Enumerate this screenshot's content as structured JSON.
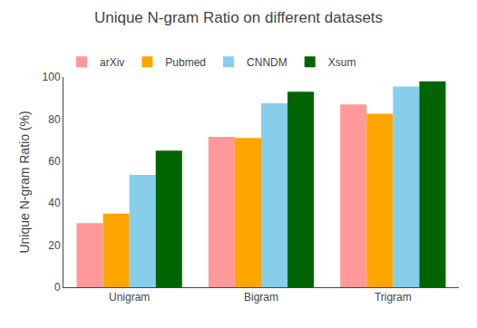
{
  "chart_data": {
    "type": "bar",
    "title": "Unique N-gram Ratio on different datasets",
    "ylabel": "Unique N-gram Ratio (%)",
    "categories": [
      "Unigram",
      "Bigram",
      "Trigram"
    ],
    "series": [
      {
        "name": "arXiv",
        "color": "#FF9999",
        "values": [
          30.5,
          71.5,
          87.0
        ]
      },
      {
        "name": "Pubmed",
        "color": "#FFA500",
        "values": [
          35.0,
          71.0,
          82.5
        ]
      },
      {
        "name": "CNNDM",
        "color": "#87CEEB",
        "values": [
          53.5,
          87.5,
          95.5
        ]
      },
      {
        "name": "Xsum",
        "color": "#006400",
        "values": [
          65.0,
          93.0,
          98.0
        ]
      }
    ],
    "ylim": [
      0,
      100
    ],
    "yticks": [
      0,
      20,
      40,
      60,
      80,
      100
    ],
    "grid": false,
    "legend": "upper left"
  }
}
